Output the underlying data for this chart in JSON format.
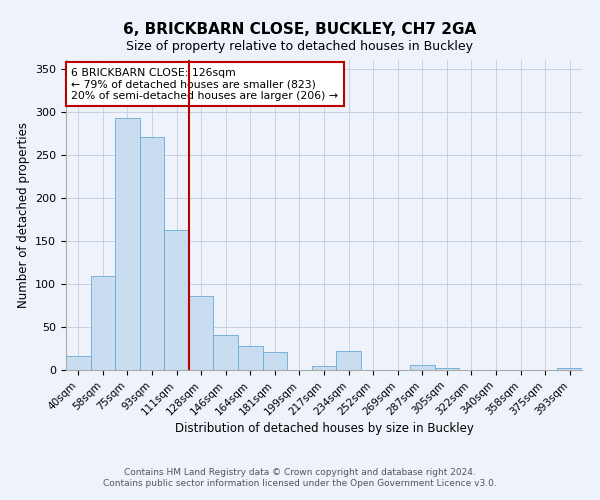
{
  "title": "6, BRICKBARN CLOSE, BUCKLEY, CH7 2GA",
  "subtitle": "Size of property relative to detached houses in Buckley",
  "xlabel": "Distribution of detached houses by size in Buckley",
  "ylabel": "Number of detached properties",
  "bin_labels": [
    "40sqm",
    "58sqm",
    "75sqm",
    "93sqm",
    "111sqm",
    "128sqm",
    "146sqm",
    "164sqm",
    "181sqm",
    "199sqm",
    "217sqm",
    "234sqm",
    "252sqm",
    "269sqm",
    "287sqm",
    "305sqm",
    "322sqm",
    "340sqm",
    "358sqm",
    "375sqm",
    "393sqm"
  ],
  "bar_heights": [
    16,
    109,
    293,
    271,
    163,
    86,
    41,
    28,
    21,
    0,
    5,
    22,
    0,
    0,
    6,
    2,
    0,
    0,
    0,
    0,
    2
  ],
  "bar_color": "#c9ddf0",
  "bar_edge_color": "#6aaad4",
  "vline_x_index": 5,
  "vline_color": "#bb0000",
  "annotation_title": "6 BRICKBARN CLOSE: 126sqm",
  "annotation_line1": "← 79% of detached houses are smaller (823)",
  "annotation_line2": "20% of semi-detached houses are larger (206) →",
  "annotation_box_color": "#bb0000",
  "ylim": [
    0,
    360
  ],
  "yticks": [
    0,
    50,
    100,
    150,
    200,
    250,
    300,
    350
  ],
  "footnote1": "Contains HM Land Registry data © Crown copyright and database right 2024.",
  "footnote2": "Contains public sector information licensed under the Open Government Licence v3.0.",
  "background_color": "#eef2fa",
  "title_fontsize": 11,
  "subtitle_fontsize": 9,
  "tick_fontsize": 7.5,
  "axis_label_fontsize": 8.5,
  "footnote_fontsize": 6.5
}
